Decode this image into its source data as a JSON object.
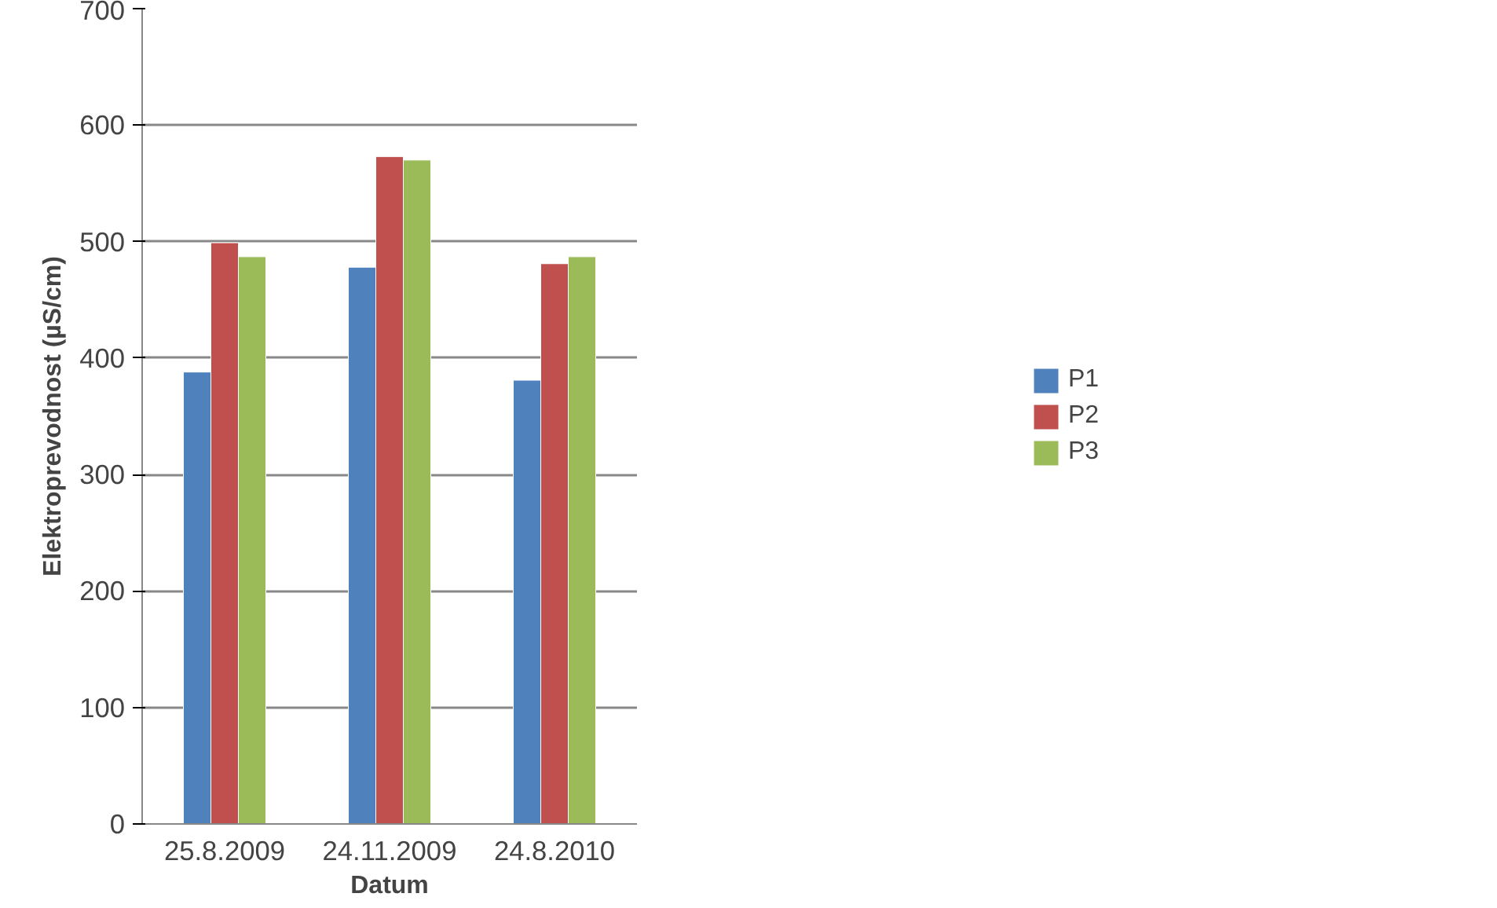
{
  "chart_data": {
    "type": "bar",
    "xlabel": "Datum",
    "ylabel": "Elektroprevodnost (µS/cm)",
    "categories": [
      "25.8.2009",
      "24.11.2009",
      "24.8.2010"
    ],
    "series": [
      {
        "name": "P1",
        "color": "#4f81bd",
        "values": [
          388,
          478,
          381
        ]
      },
      {
        "name": "P2",
        "color": "#c0504d",
        "values": [
          499,
          573,
          481
        ]
      },
      {
        "name": "P3",
        "color": "#9bbb59",
        "values": [
          487,
          570,
          487
        ]
      }
    ],
    "ylim": [
      0,
      700
    ],
    "yticks": [
      0,
      100,
      200,
      300,
      400,
      500,
      600,
      700
    ],
    "grid": "y",
    "legend": "right"
  }
}
